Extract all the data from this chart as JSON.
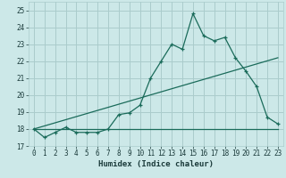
{
  "xlabel": "Humidex (Indice chaleur)",
  "bg_color": "#cce8e8",
  "grid_color": "#aacccc",
  "line_color": "#1a6b5a",
  "xlim": [
    -0.5,
    23.5
  ],
  "ylim": [
    17,
    25.5
  ],
  "yticks": [
    17,
    18,
    19,
    20,
    21,
    22,
    23,
    24,
    25
  ],
  "xticks": [
    0,
    1,
    2,
    3,
    4,
    5,
    6,
    7,
    8,
    9,
    10,
    11,
    12,
    13,
    14,
    15,
    16,
    17,
    18,
    19,
    20,
    21,
    22,
    23
  ],
  "line1_x": [
    0,
    1,
    2,
    3,
    4,
    5,
    6,
    7,
    8,
    9,
    10,
    11,
    12,
    13,
    14,
    15,
    16,
    17,
    18,
    19,
    20,
    21,
    22,
    23
  ],
  "line1_y": [
    18.0,
    17.5,
    17.8,
    18.1,
    17.8,
    17.8,
    17.8,
    18.0,
    18.85,
    18.95,
    19.4,
    21.0,
    22.0,
    23.0,
    22.7,
    24.8,
    23.5,
    23.2,
    23.4,
    22.2,
    21.4,
    20.5,
    18.7,
    18.3
  ],
  "line2_x": [
    0,
    23
  ],
  "line2_y": [
    18.0,
    22.2
  ],
  "line3_x": [
    0,
    23
  ],
  "line3_y": [
    18.0,
    18.0
  ]
}
